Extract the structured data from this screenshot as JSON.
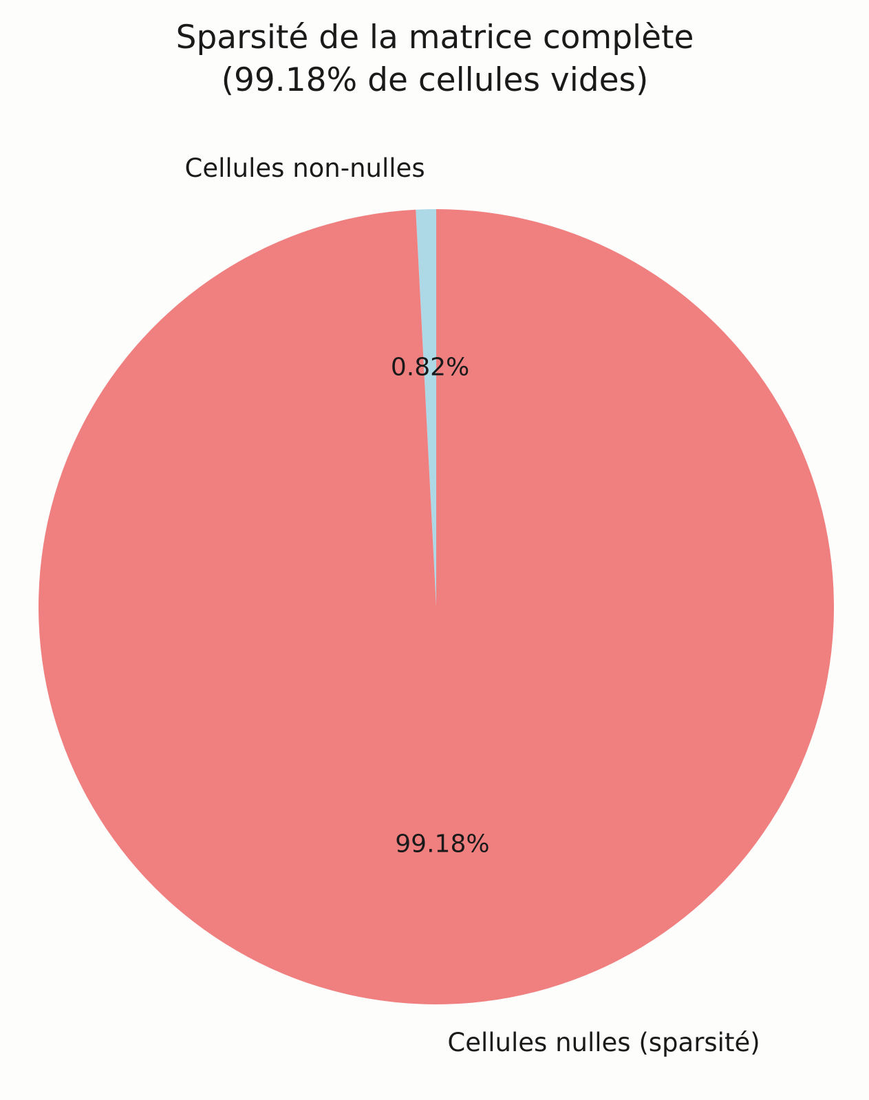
{
  "chart_data": {
    "type": "pie",
    "title_lines": [
      "Sparsité de la matrice complète",
      "(99.18% de cellules vides)"
    ],
    "start_angle_deg": 90,
    "direction": "counterclockwise",
    "slices": [
      {
        "label": "Cellules non-nulles",
        "value": 0.82,
        "pct_label": "0.82%",
        "color": "#add8e6"
      },
      {
        "label": "Cellules nulles (sparsité)",
        "value": 99.18,
        "pct_label": "99.18%",
        "color": "#f08080"
      }
    ]
  }
}
